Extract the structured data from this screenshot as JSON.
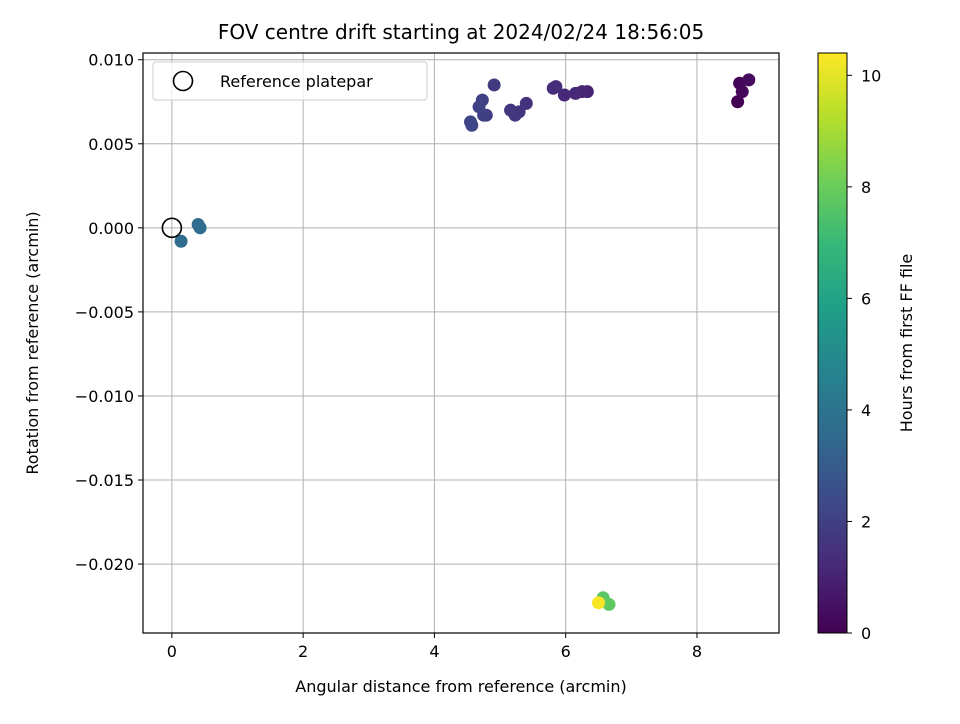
{
  "chart_data": {
    "type": "scatter",
    "title": "FOV centre drift starting at 2024/02/24 18:56:05",
    "xlabel": "Angular distance from reference (arcmin)",
    "ylabel": "Rotation from reference (arcmin)",
    "xlim": [
      -0.44,
      9.25
    ],
    "ylim": [
      -0.0241,
      0.0104
    ],
    "xticks": [
      0,
      2,
      4,
      6,
      8
    ],
    "xtick_labels": [
      "0",
      "2",
      "4",
      "6",
      "8"
    ],
    "yticks": [
      0.01,
      0.005,
      0.0,
      -0.005,
      -0.01,
      -0.015,
      -0.02
    ],
    "ytick_labels": [
      "0.010",
      "0.005",
      "0.000",
      "−0.005",
      "−0.010",
      "−0.015",
      "−0.020"
    ],
    "grid": true,
    "legend": {
      "position": "top-left",
      "entries": [
        "Reference platepar"
      ]
    },
    "reference_point": {
      "x": 0,
      "y": 0
    },
    "colorbar": {
      "label": "Hours from first FF file",
      "colormap": "viridis",
      "range": [
        0,
        10.4
      ],
      "ticks": [
        0,
        2,
        4,
        6,
        8,
        10
      ],
      "tick_labels": [
        "0",
        "2",
        "4",
        "6",
        "8",
        "10"
      ]
    },
    "colormap_stops": [
      "#440154",
      "#482878",
      "#3e4989",
      "#31688e",
      "#26828e",
      "#1f9e89",
      "#35b779",
      "#6ece58",
      "#b5de2b",
      "#fde725"
    ],
    "points": [
      {
        "x": 8.62,
        "y": 0.0075,
        "hours": 0.0
      },
      {
        "x": 8.65,
        "y": 0.0086,
        "hours": 0.1
      },
      {
        "x": 8.69,
        "y": 0.0081,
        "hours": 0.2
      },
      {
        "x": 8.79,
        "y": 0.0088,
        "hours": 0.3
      },
      {
        "x": 6.33,
        "y": 0.0081,
        "hours": 1.0
      },
      {
        "x": 6.25,
        "y": 0.0081,
        "hours": 1.1
      },
      {
        "x": 6.15,
        "y": 0.008,
        "hours": 1.15
      },
      {
        "x": 5.98,
        "y": 0.0079,
        "hours": 1.2
      },
      {
        "x": 5.85,
        "y": 0.0084,
        "hours": 1.3
      },
      {
        "x": 5.81,
        "y": 0.0083,
        "hours": 1.35
      },
      {
        "x": 5.4,
        "y": 0.0074,
        "hours": 1.5
      },
      {
        "x": 5.29,
        "y": 0.0069,
        "hours": 1.6
      },
      {
        "x": 5.23,
        "y": 0.0067,
        "hours": 1.65
      },
      {
        "x": 5.16,
        "y": 0.007,
        "hours": 1.7
      },
      {
        "x": 4.91,
        "y": 0.0085,
        "hours": 1.8
      },
      {
        "x": 4.79,
        "y": 0.0067,
        "hours": 1.9
      },
      {
        "x": 4.75,
        "y": 0.0067,
        "hours": 1.95
      },
      {
        "x": 4.73,
        "y": 0.0076,
        "hours": 2.0
      },
      {
        "x": 4.68,
        "y": 0.0072,
        "hours": 2.05
      },
      {
        "x": 4.57,
        "y": 0.0061,
        "hours": 2.15
      },
      {
        "x": 4.55,
        "y": 0.0063,
        "hours": 2.2
      },
      {
        "x": 0.4,
        "y": 0.0002,
        "hours": 3.6
      },
      {
        "x": 0.43,
        "y": 0.0,
        "hours": 3.65
      },
      {
        "x": 0.14,
        "y": -0.0008,
        "hours": 3.7
      },
      {
        "x": 6.57,
        "y": -0.022,
        "hours": 7.7
      },
      {
        "x": 6.66,
        "y": -0.0224,
        "hours": 7.8
      },
      {
        "x": 6.5,
        "y": -0.0223,
        "hours": 10.3
      }
    ]
  }
}
